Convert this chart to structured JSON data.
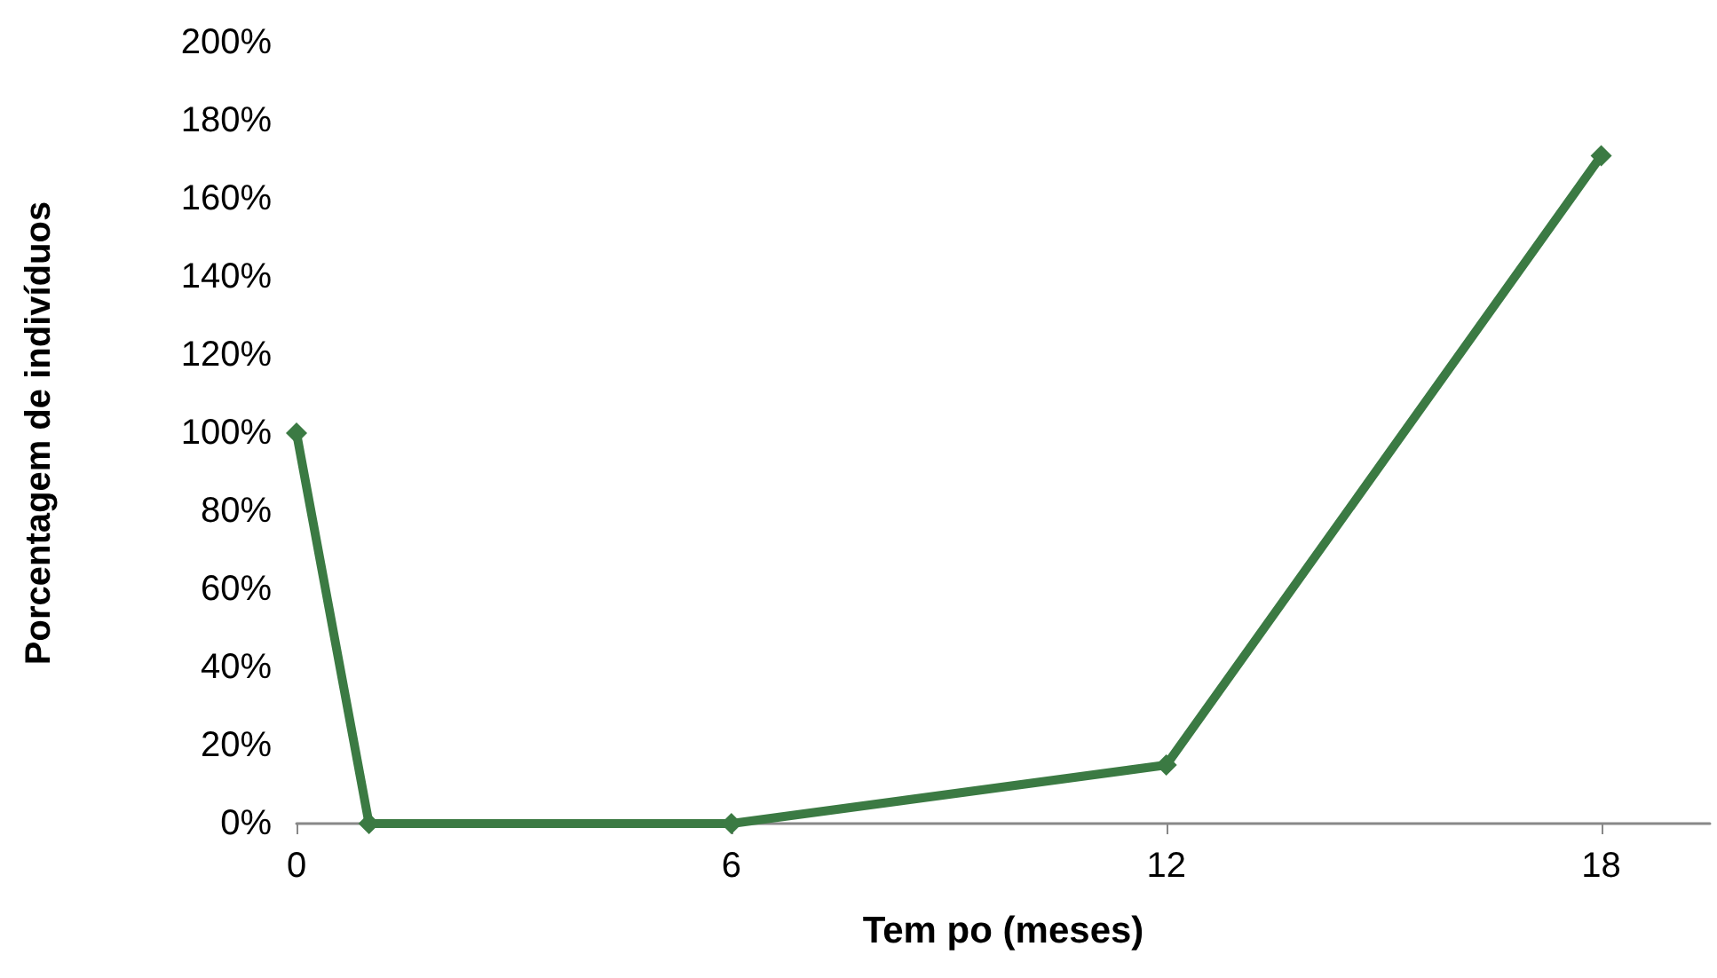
{
  "chart_data": {
    "type": "line",
    "xlabel": "Tem po (meses)",
    "ylabel": "Porcentagem de indivíduos",
    "x": [
      0,
      1,
      6,
      12,
      18
    ],
    "series": [
      {
        "color": "#3b7a43",
        "values": [
          100,
          0,
          0,
          15,
          171
        ]
      }
    ],
    "xlim": [
      0,
      19.5
    ],
    "xticks": [
      0,
      6,
      12,
      18
    ],
    "ylim": [
      0,
      200
    ],
    "yticks": [
      {
        "value": 0,
        "label": "0%"
      },
      {
        "value": 20,
        "label": "20%"
      },
      {
        "value": 40,
        "label": "40%"
      },
      {
        "value": 60,
        "label": "60%"
      },
      {
        "value": 80,
        "label": "80%"
      },
      {
        "value": 100,
        "label": "100%"
      },
      {
        "value": 120,
        "label": "120%"
      },
      {
        "value": 140,
        "label": "140%"
      },
      {
        "value": 160,
        "label": "160%"
      },
      {
        "value": 180,
        "label": "180%"
      },
      {
        "value": 200,
        "label": "200%"
      }
    ],
    "grid": false,
    "marker": "diamond",
    "line_style": "solid"
  }
}
